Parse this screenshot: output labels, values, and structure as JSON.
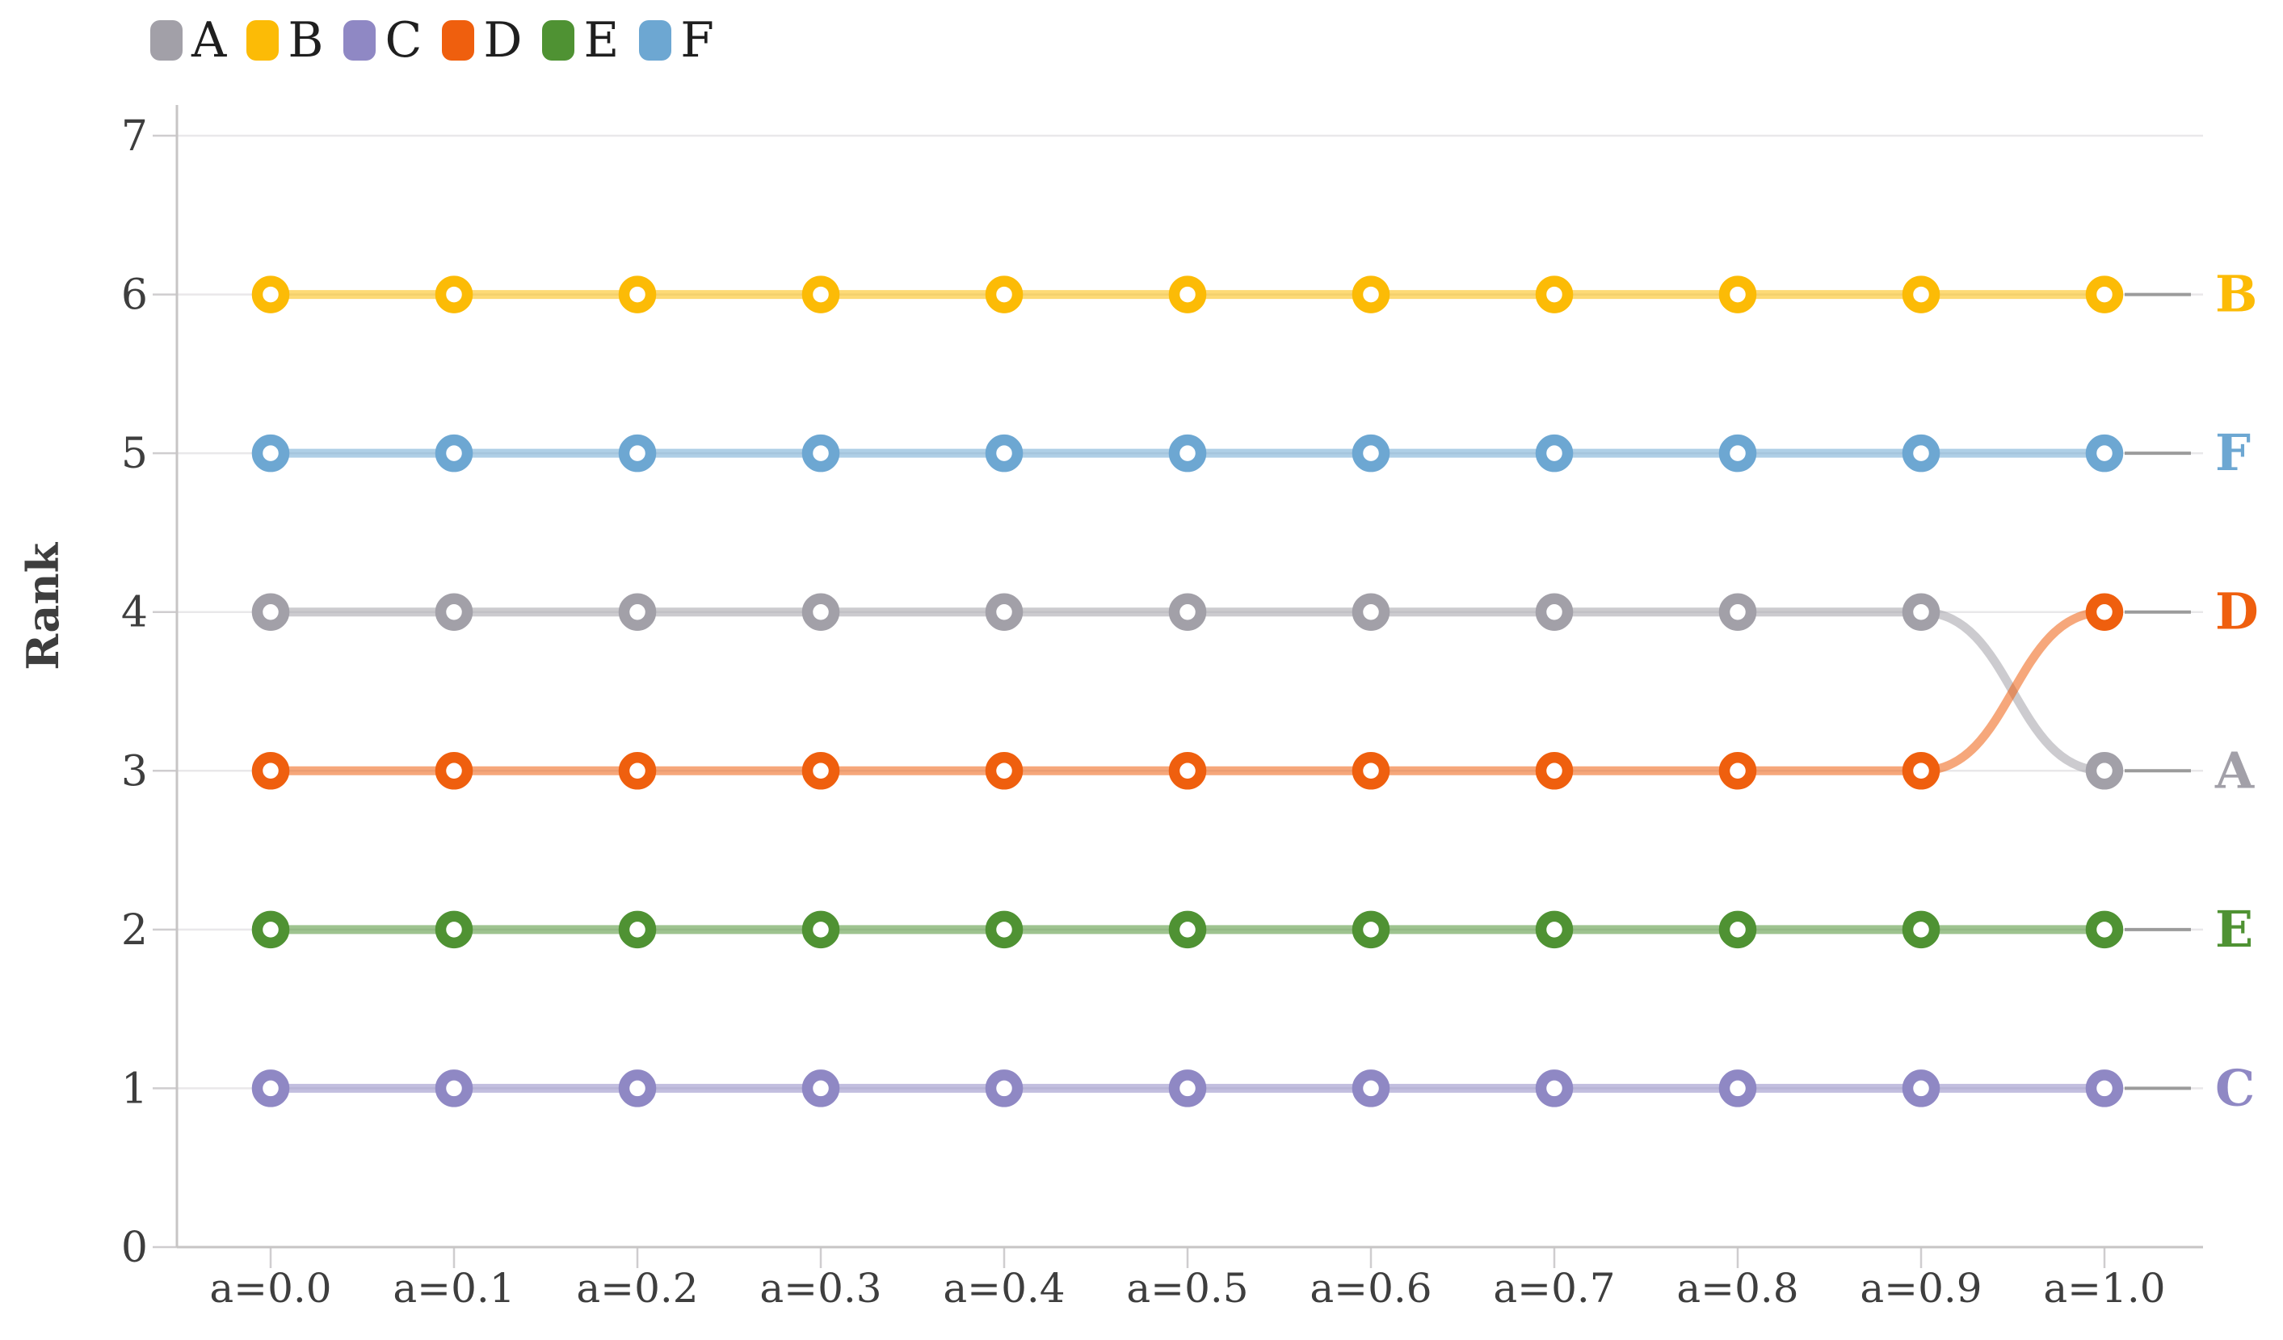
{
  "chart_data": {
    "type": "line",
    "subtype": "bump-rank-chart",
    "title": "",
    "xlabel": "",
    "ylabel": "Rank",
    "x_categories": [
      "a=0.0",
      "a=0.1",
      "a=0.2",
      "a=0.3",
      "a=0.4",
      "a=0.5",
      "a=0.6",
      "a=0.7",
      "a=0.8",
      "a=0.9",
      "a=1.0"
    ],
    "y_ticks": [
      "0",
      "1",
      "2",
      "3",
      "4",
      "5",
      "6",
      "7"
    ],
    "ylim": [
      0,
      7
    ],
    "grid": "horizontal",
    "legend_position": "top-left",
    "series": [
      {
        "name": "A",
        "color": "#a2a0a8",
        "values": [
          4,
          4,
          4,
          4,
          4,
          4,
          4,
          4,
          4,
          4,
          3
        ]
      },
      {
        "name": "B",
        "color": "#fcbb06",
        "values": [
          6,
          6,
          6,
          6,
          6,
          6,
          6,
          6,
          6,
          6,
          6
        ]
      },
      {
        "name": "C",
        "color": "#8f88c4",
        "values": [
          1,
          1,
          1,
          1,
          1,
          1,
          1,
          1,
          1,
          1,
          1
        ]
      },
      {
        "name": "D",
        "color": "#ef5f0e",
        "values": [
          3,
          3,
          3,
          3,
          3,
          3,
          3,
          3,
          3,
          3,
          4
        ]
      },
      {
        "name": "E",
        "color": "#4f9233",
        "values": [
          2,
          2,
          2,
          2,
          2,
          2,
          2,
          2,
          2,
          2,
          2
        ]
      },
      {
        "name": "F",
        "color": "#6da7d2",
        "values": [
          5,
          5,
          5,
          5,
          5,
          5,
          5,
          5,
          5,
          5,
          5
        ]
      }
    ],
    "end_labels_top_to_bottom": [
      "B",
      "F",
      "D",
      "A",
      "E",
      "C"
    ]
  },
  "legend": {
    "items": [
      {
        "label": "A",
        "color": "#a2a0a8"
      },
      {
        "label": "B",
        "color": "#fcbb06"
      },
      {
        "label": "C",
        "color": "#8f88c4"
      },
      {
        "label": "D",
        "color": "#ef5f0e"
      },
      {
        "label": "E",
        "color": "#4f9233"
      },
      {
        "label": "F",
        "color": "#6da7d2"
      }
    ]
  },
  "colors": {
    "axis_domain": "#c7c5c5",
    "gridline": "#e9e8ea",
    "tick": "#cfcdcf",
    "axis_text": "#3e3e3e",
    "leader_line": "#9b9b9b",
    "legend_text": "#1f1f1f",
    "background": "#ffffff"
  }
}
